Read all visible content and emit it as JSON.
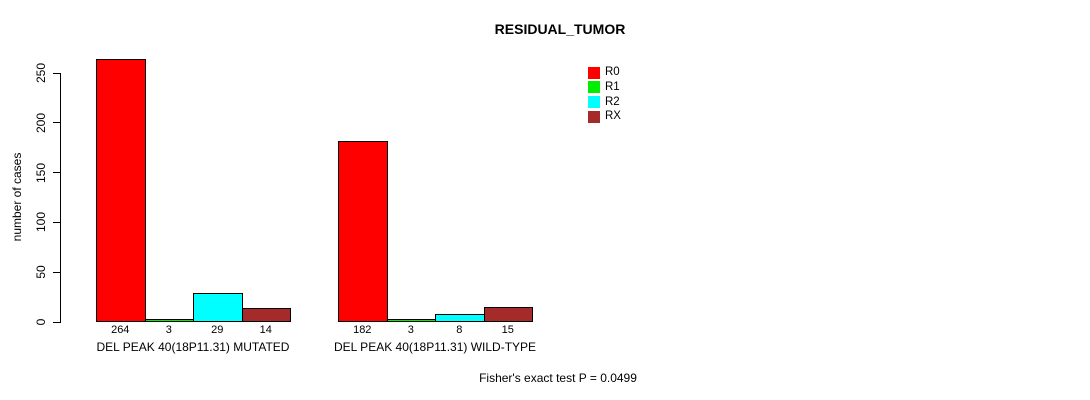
{
  "chart_data": {
    "type": "bar",
    "title": "RESIDUAL_TUMOR",
    "xlabel": "",
    "ylabel": "number of cases",
    "ylim": [
      0,
      250
    ],
    "yticks": [
      0,
      50,
      100,
      150,
      200,
      250
    ],
    "grid": false,
    "legend_position": "top-right",
    "series_names": [
      "R0",
      "R1",
      "R2",
      "RX"
    ],
    "legend": [
      {
        "label": "R0",
        "color": "#FF0000"
      },
      {
        "label": "R1",
        "color": "#00EE00"
      },
      {
        "label": "R2",
        "color": "#00FFFF"
      },
      {
        "label": "RX",
        "color": "#A52A2A"
      }
    ],
    "groups": [
      {
        "label": "DEL PEAK 40(18P11.31) MUTATED",
        "values": [
          264,
          3,
          29,
          14
        ]
      },
      {
        "label": "DEL PEAK 40(18P11.31) WILD-TYPE",
        "values": [
          182,
          3,
          8,
          15
        ]
      }
    ],
    "annotation": "Fisher's exact test P = 0.0499"
  }
}
